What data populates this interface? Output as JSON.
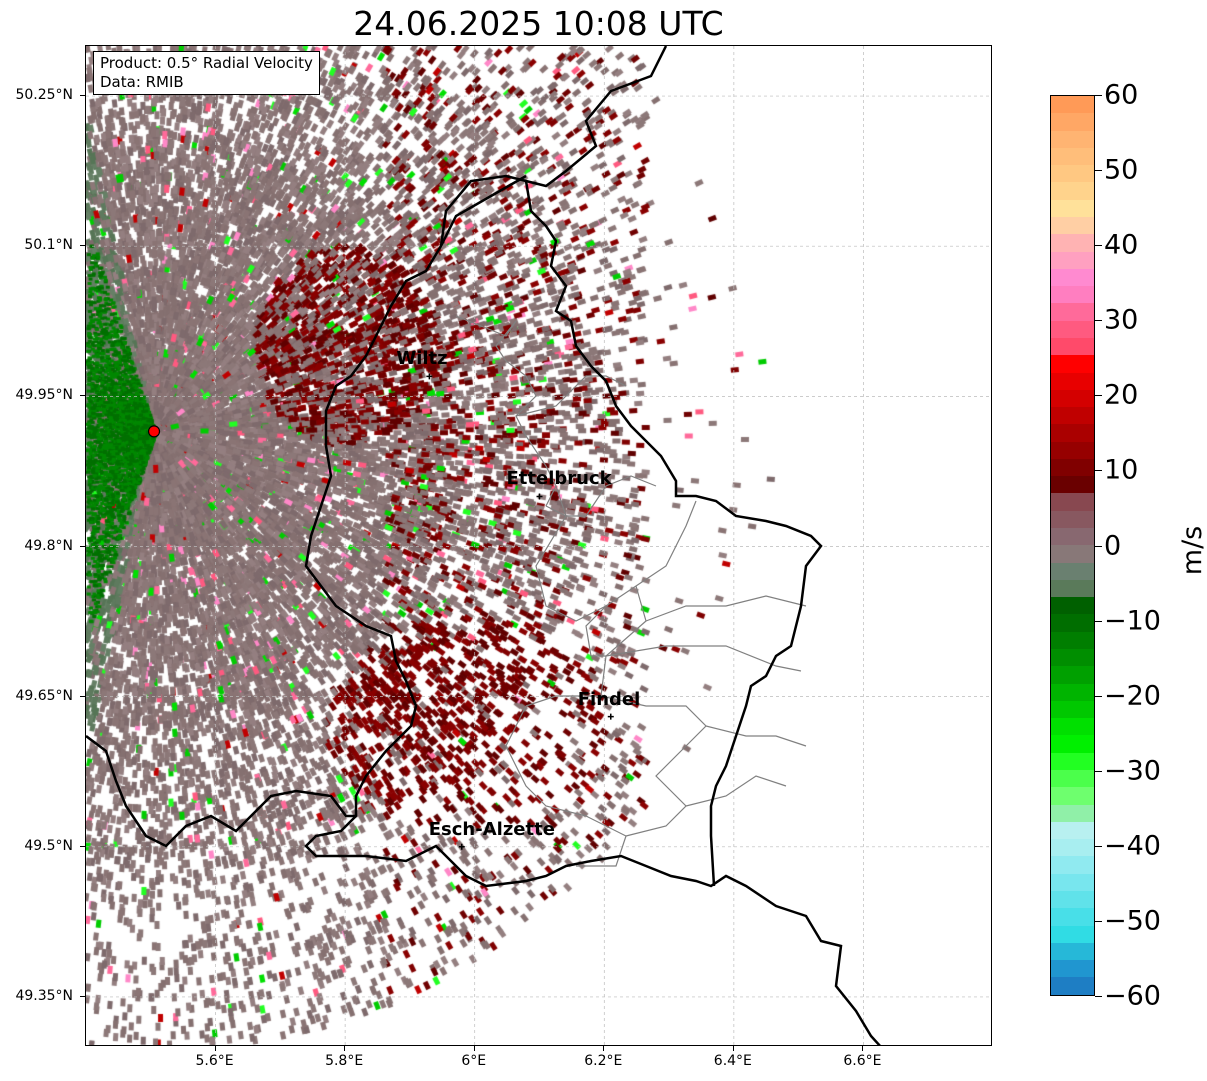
{
  "title": "24.06.2025 10:08 UTC",
  "info_box": {
    "line1": "Product: 0.5° Radial Velocity",
    "line2": "Data: RMIB"
  },
  "y_ticks": [
    "50.25°N",
    "50.1°N",
    "49.95°N",
    "49.8°N",
    "49.65°N",
    "49.5°N",
    "49.35°N"
  ],
  "y_tick_values": [
    50.25,
    50.1,
    49.95,
    49.8,
    49.65,
    49.5,
    49.35
  ],
  "x_ticks": [
    "5.6°E",
    "5.8°E",
    "6°E",
    "6.2°E",
    "6.4°E",
    "6.6°E"
  ],
  "x_tick_values": [
    5.6,
    5.8,
    6.0,
    6.2,
    6.4,
    6.6
  ],
  "extent": {
    "lon": [
      5.4,
      6.8
    ],
    "lat": [
      49.3,
      50.3
    ]
  },
  "radar_site": {
    "lon": 5.505,
    "lat": 49.915,
    "color": "#ff0000"
  },
  "cities": [
    {
      "name": "Wiltz",
      "lon": 5.93,
      "lat": 49.97
    },
    {
      "name": "Ettelbruck",
      "lon": 6.1,
      "lat": 49.85
    },
    {
      "name": "Findel",
      "lon": 6.21,
      "lat": 49.63
    },
    {
      "name": "Esch-Alzette",
      "lon": 5.98,
      "lat": 49.5
    }
  ],
  "colorbar": {
    "unit": "m/s",
    "range": [
      -60,
      60
    ],
    "ticks": [
      "60",
      "50",
      "40",
      "30",
      "20",
      "10",
      "0",
      "−10",
      "−20",
      "−30",
      "−40",
      "−50",
      "−60"
    ],
    "colors": [
      "#ff9a57",
      "#ffa765",
      "#ffb472",
      "#ffbe7a",
      "#ffc882",
      "#ffd38c",
      "#ffe19a",
      "#ffcfa4",
      "#ffb3b3",
      "#ffa0c0",
      "#ff8ad0",
      "#ff7ec0",
      "#ff6a9a",
      "#ff5a80",
      "#ff4a6a",
      "#ff0000",
      "#e80000",
      "#d40000",
      "#c00000",
      "#aa0000",
      "#960000",
      "#800000",
      "#6a0000",
      "#884850",
      "#885860",
      "#886870",
      "#887878",
      "#6a8070",
      "#5a7a5a",
      "#006000",
      "#006e00",
      "#007e00",
      "#008e00",
      "#00a000",
      "#00b400",
      "#00c800",
      "#00e000",
      "#00f000",
      "#22ff22",
      "#4bff4b",
      "#6eff6e",
      "#90f0a8",
      "#b8f0f0",
      "#a8eef0",
      "#90eaf0",
      "#78e6ee",
      "#60e2ea",
      "#48dfe8",
      "#30dce4",
      "#26b8d8",
      "#2096d0",
      "#1e7ec4"
    ]
  }
}
